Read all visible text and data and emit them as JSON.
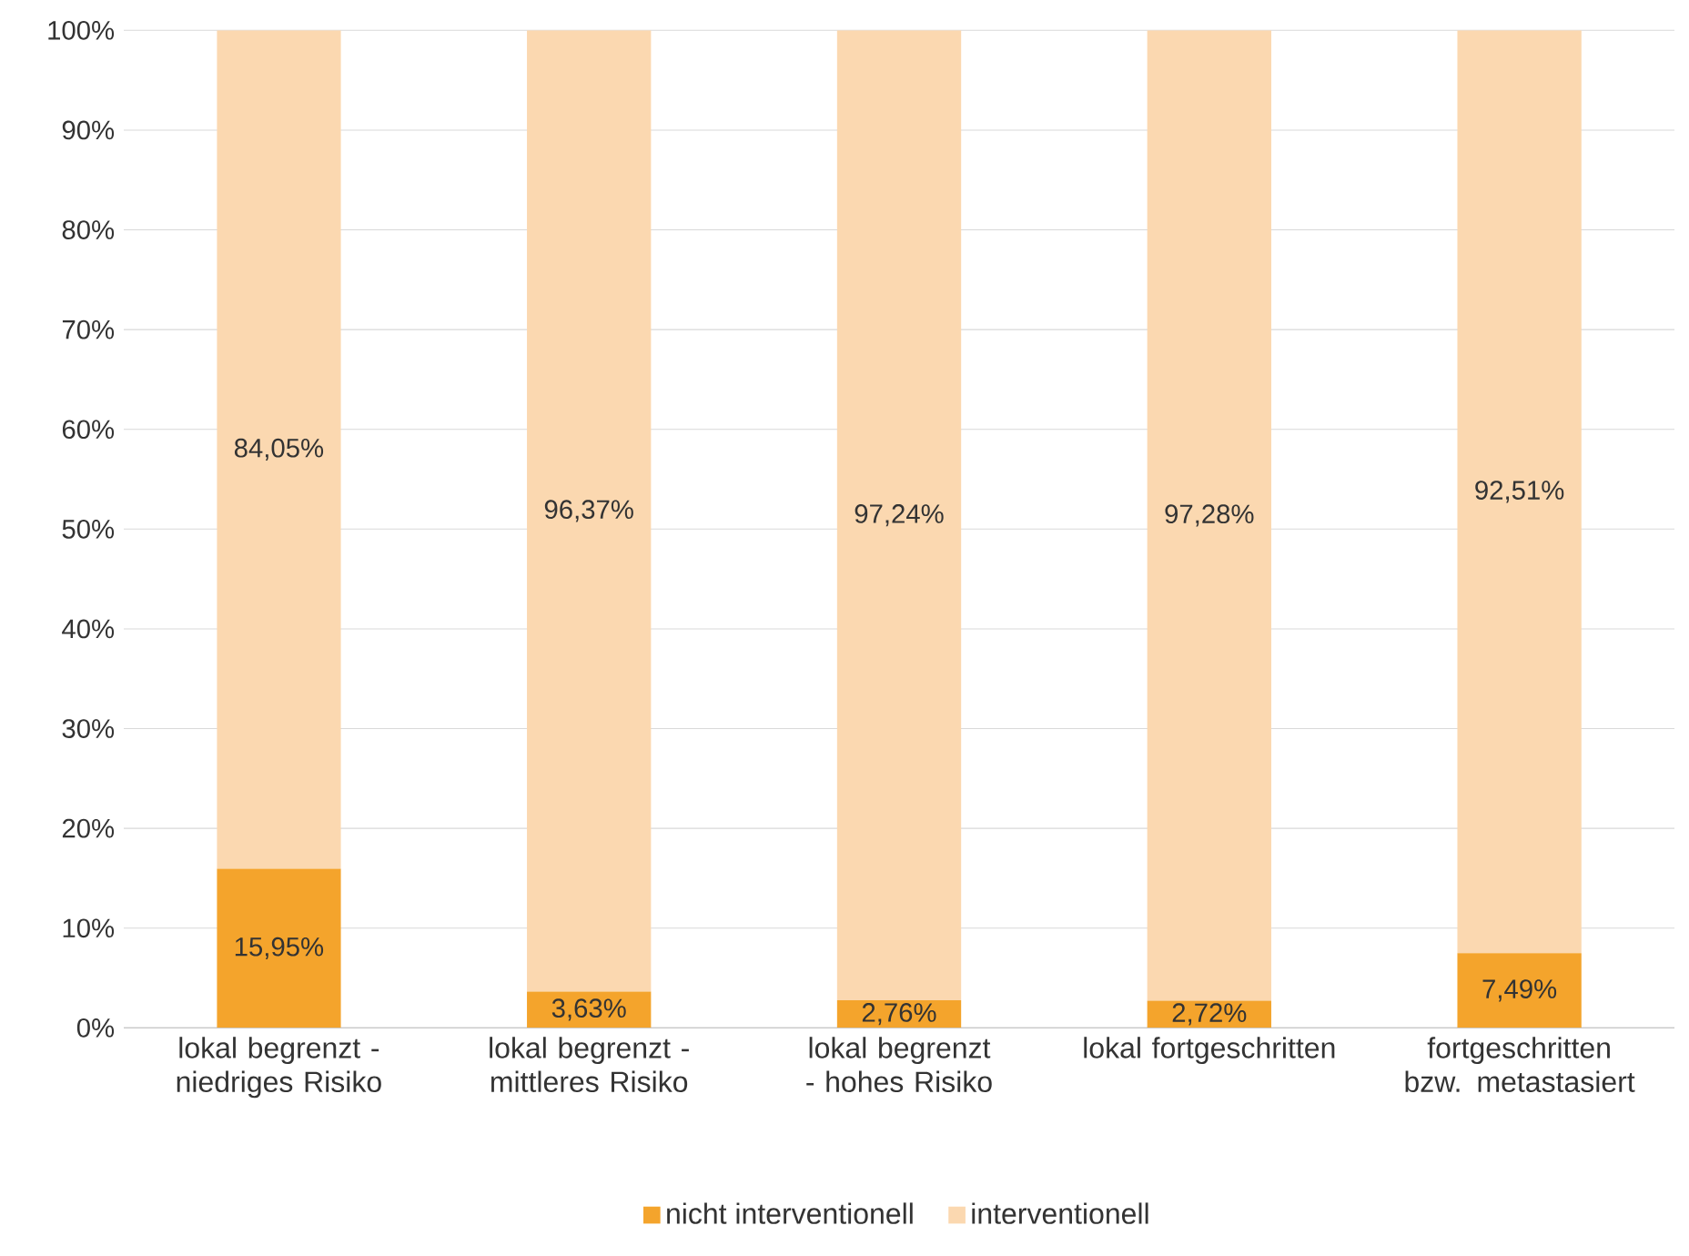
{
  "chart_data": {
    "type": "bar",
    "stacked": true,
    "categories": [
      "lokal begrenzt - niedriges Risiko",
      "lokal begrenzt - mittleres Risiko",
      "lokal begrenzt - hohes Risiko",
      "lokal fortgeschritten",
      "fortgeschritten bzw. metastasiert"
    ],
    "series": [
      {
        "name": "nicht interventionell",
        "color": "#f4a42c",
        "values": [
          15.95,
          3.63,
          2.76,
          2.72,
          7.49
        ],
        "value_labels": [
          "15,95%",
          "3,63%",
          "2,76%",
          "2,72%",
          "7,49%"
        ]
      },
      {
        "name": "interventionell",
        "color": "#fbd8b0",
        "values": [
          84.05,
          96.37,
          97.24,
          97.28,
          92.51
        ],
        "value_labels": [
          "84,05%",
          "96,37%",
          "97,24%",
          "97,28%",
          "92,51%"
        ]
      }
    ],
    "ylim": [
      0,
      100
    ],
    "yticks": [
      {
        "value": 0,
        "label": "0%"
      },
      {
        "value": 10,
        "label": "10%"
      },
      {
        "value": 20,
        "label": "20%"
      },
      {
        "value": 30,
        "label": "30%"
      },
      {
        "value": 40,
        "label": "40%"
      },
      {
        "value": 50,
        "label": "50%"
      },
      {
        "value": 60,
        "label": "60%"
      },
      {
        "value": 70,
        "label": "70%"
      },
      {
        "value": 80,
        "label": "80%"
      },
      {
        "value": 90,
        "label": "90%"
      },
      {
        "value": 100,
        "label": "100%"
      }
    ],
    "grid": "y",
    "legend": "bottom"
  }
}
